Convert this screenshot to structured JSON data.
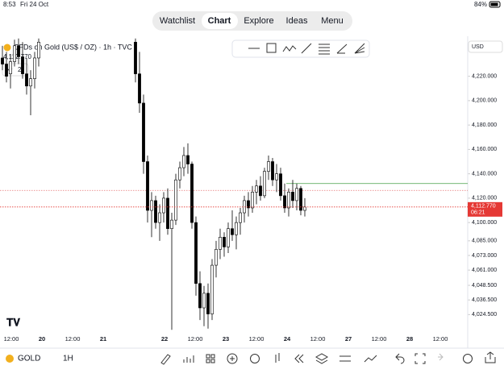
{
  "status_bar": {
    "time": "8:53",
    "date": "Fri 24 Oct",
    "battery": "84%"
  },
  "tabs": [
    "Watchlist",
    "Chart",
    "Explore",
    "Ideas",
    "Menu"
  ],
  "symbol": {
    "name": "CFDs on Gold (US$ / OZ) · 1h · TVC",
    "indicators": "2",
    "currency": "USD"
  },
  "bottom_bar": {
    "symbol": "GOLD",
    "interval": "1H"
  },
  "chart_data": {
    "type": "candlestick",
    "ylim": [
      4011.5,
      4251.5
    ],
    "yticks": [
      {
        "value": 4220,
        "label": "4,220.000"
      },
      {
        "value": 4200,
        "label": "4,200.000"
      },
      {
        "value": 4180,
        "label": "4,180.000"
      },
      {
        "value": 4160,
        "label": "4,160.000"
      },
      {
        "value": 4140,
        "label": "4,140.000"
      },
      {
        "value": 4120,
        "label": "4,120.000"
      },
      {
        "value": 4100,
        "label": "4,100.000"
      },
      {
        "value": 4085,
        "label": "4,085.000"
      },
      {
        "value": 4073,
        "label": "4,073.000"
      },
      {
        "value": 4061,
        "label": "4,061.000"
      },
      {
        "value": 4048.5,
        "label": "4,048.500"
      },
      {
        "value": 4036.5,
        "label": "4,036.500"
      },
      {
        "value": 4024.5,
        "label": "4,024.500"
      }
    ],
    "xticks": [
      "12:00",
      "20",
      "12:00",
      "21",
      null,
      "22",
      "12:00",
      "23",
      "12:00",
      "24",
      "12:00",
      "27",
      "12:00",
      "28",
      "12:00"
    ],
    "last_price": {
      "value": 4112.77,
      "label": "4,112.770",
      "countdown": "06:21",
      "color": "#e53935"
    },
    "horizontal_lines": [
      {
        "value": 4132,
        "color": "#43a047"
      },
      {
        "value": 4126.4,
        "color": "#e57373"
      }
    ],
    "up_color": "#ffffff",
    "down_color": "#000000",
    "candles": [
      {
        "o": 4235,
        "h": 4245,
        "l": 4225,
        "c": 4230
      },
      {
        "o": 4230,
        "h": 4240,
        "l": 4215,
        "c": 4220
      },
      {
        "o": 4222,
        "h": 4238,
        "l": 4210,
        "c": 4232
      },
      {
        "o": 4232,
        "h": 4250,
        "l": 4228,
        "c": 4245
      },
      {
        "o": 4245,
        "h": 4251,
        "l": 4230,
        "c": 4236
      },
      {
        "o": 4236,
        "h": 4248,
        "l": 4218,
        "c": 4222
      },
      {
        "o": 4222,
        "h": 4235,
        "l": 4205,
        "c": 4212
      },
      {
        "o": 4212,
        "h": 4225,
        "l": 4188,
        "c": 4218
      },
      {
        "o": 4218,
        "h": 4240,
        "l": 4210,
        "c": 4235
      },
      {
        "o": 4235,
        "h": 4251,
        "l": 4228,
        "c": 4248
      },
      null,
      null,
      null,
      null,
      null,
      null,
      null,
      null,
      null,
      null,
      null,
      null,
      null,
      null,
      null,
      null,
      null,
      null,
      null,
      null,
      null,
      null,
      null,
      {
        "o": 4248,
        "h": 4251,
        "l": 4215,
        "c": 4222
      },
      {
        "o": 4222,
        "h": 4240,
        "l": 4190,
        "c": 4198
      },
      {
        "o": 4198,
        "h": 4205,
        "l": 4140,
        "c": 4150
      },
      {
        "o": 4150,
        "h": 4155,
        "l": 4100,
        "c": 4110
      },
      {
        "o": 4110,
        "h": 4125,
        "l": 4088,
        "c": 4118
      },
      {
        "o": 4118,
        "h": 4122,
        "l": 4095,
        "c": 4100
      },
      {
        "o": 4100,
        "h": 4115,
        "l": 4085,
        "c": 4108
      },
      {
        "o": 4108,
        "h": 4125,
        "l": 4100,
        "c": 4120
      },
      {
        "o": 4120,
        "h": 4128,
        "l": 4090,
        "c": 4095
      },
      {
        "o": 4095,
        "h": 4108,
        "l": 4012,
        "c": 4102
      },
      {
        "o": 4102,
        "h": 4140,
        "l": 4098,
        "c": 4135
      },
      {
        "o": 4135,
        "h": 4150,
        "l": 4128,
        "c": 4145
      },
      {
        "o": 4145,
        "h": 4162,
        "l": 4138,
        "c": 4155
      },
      {
        "o": 4155,
        "h": 4165,
        "l": 4140,
        "c": 4148
      },
      {
        "o": 4148,
        "h": 4150,
        "l": 4095,
        "c": 4100
      },
      {
        "o": 4100,
        "h": 4105,
        "l": 4040,
        "c": 4050
      },
      {
        "o": 4050,
        "h": 4060,
        "l": 4020,
        "c": 4030
      },
      {
        "o": 4030,
        "h": 4048,
        "l": 4015,
        "c": 4042
      },
      {
        "o": 4042,
        "h": 4050,
        "l": 4013,
        "c": 4025
      },
      {
        "o": 4025,
        "h": 4070,
        "l": 4020,
        "c": 4065
      },
      {
        "o": 4065,
        "h": 4085,
        "l": 4055,
        "c": 4078
      },
      {
        "o": 4078,
        "h": 4095,
        "l": 4070,
        "c": 4088
      },
      {
        "o": 4088,
        "h": 4092,
        "l": 4072,
        "c": 4080
      },
      {
        "o": 4080,
        "h": 4100,
        "l": 4075,
        "c": 4095
      },
      {
        "o": 4095,
        "h": 4110,
        "l": 4085,
        "c": 4090
      },
      {
        "o": 4090,
        "h": 4105,
        "l": 4078,
        "c": 4100
      },
      {
        "o": 4100,
        "h": 4112,
        "l": 4090,
        "c": 4108
      },
      {
        "o": 4108,
        "h": 4122,
        "l": 4100,
        "c": 4118
      },
      {
        "o": 4118,
        "h": 4125,
        "l": 4105,
        "c": 4112
      },
      {
        "o": 4112,
        "h": 4130,
        "l": 4108,
        "c": 4125
      },
      {
        "o": 4125,
        "h": 4135,
        "l": 4115,
        "c": 4130
      },
      {
        "o": 4130,
        "h": 4138,
        "l": 4118,
        "c": 4122
      },
      {
        "o": 4122,
        "h": 4145,
        "l": 4120,
        "c": 4142
      },
      {
        "o": 4142,
        "h": 4155,
        "l": 4135,
        "c": 4150
      },
      {
        "o": 4150,
        "h": 4153,
        "l": 4130,
        "c": 4135
      },
      {
        "o": 4135,
        "h": 4148,
        "l": 4125,
        "c": 4140
      },
      {
        "o": 4140,
        "h": 4145,
        "l": 4118,
        "c": 4122
      },
      {
        "o": 4122,
        "h": 4132,
        "l": 4108,
        "c": 4112
      },
      {
        "o": 4112,
        "h": 4128,
        "l": 4105,
        "c": 4125
      },
      {
        "o": 4125,
        "h": 4135,
        "l": 4112,
        "c": 4118
      },
      {
        "o": 4118,
        "h": 4132,
        "l": 4110,
        "c": 4128
      },
      {
        "o": 4128,
        "h": 4130,
        "l": 4106,
        "c": 4110
      },
      {
        "o": 4110,
        "h": 4120,
        "l": 4105,
        "c": 4112.77
      }
    ]
  }
}
